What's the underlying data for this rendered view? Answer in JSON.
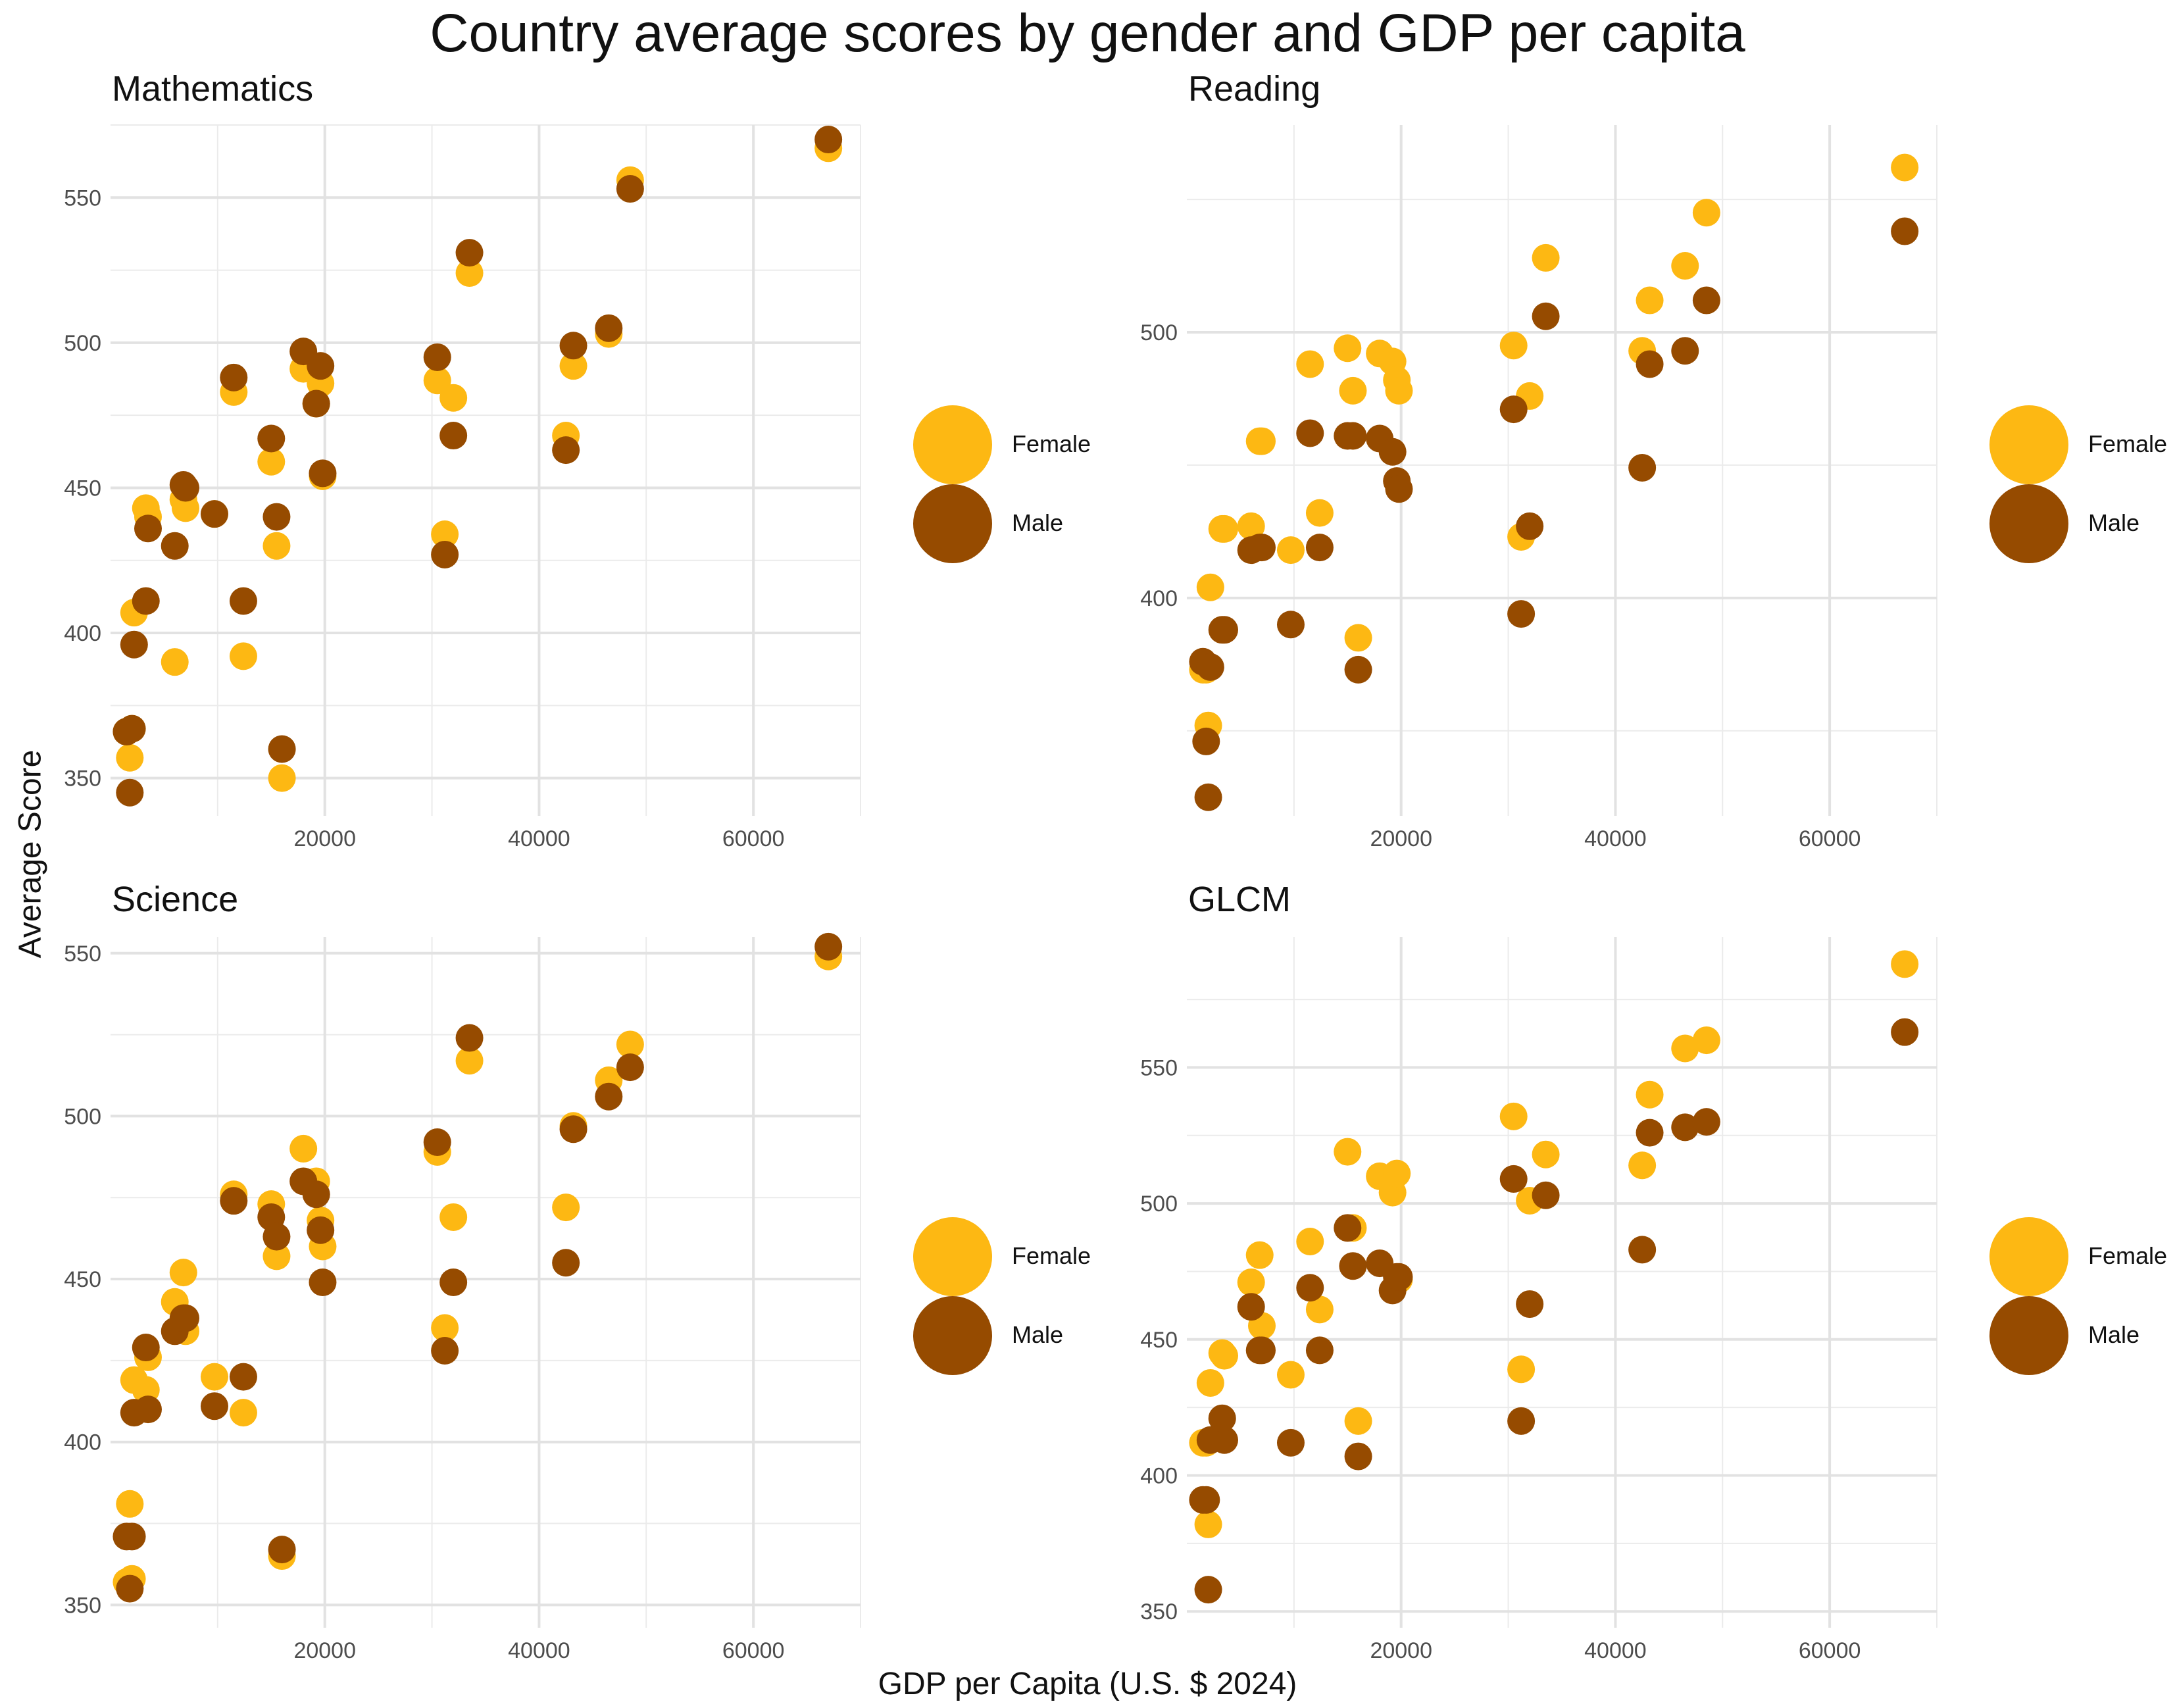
{
  "title": "Country average scores by gender and GDP per capita",
  "xlabel": "GDP per Capita (U.S. $ 2024)",
  "ylabel": "Average Score",
  "colors": {
    "Female": "#FDB813",
    "Male": "#964B00"
  },
  "legend_labels": [
    "Female",
    "Male"
  ],
  "gdp": [
    2000,
    1800,
    1500,
    2200,
    3500,
    3300,
    6000,
    6800,
    7000,
    9700,
    11500,
    12400,
    15000,
    15500,
    16000,
    18000,
    19200,
    19600,
    19800,
    30500,
    31200,
    32000,
    33500,
    42500,
    43200,
    46500,
    48500,
    67000
  ],
  "chart_data": [
    {
      "type": "scatter",
      "title": "Mathematics",
      "xlim": [
        0,
        70000
      ],
      "ylim": [
        337,
        575
      ],
      "xticks": [
        20000,
        40000,
        60000
      ],
      "yticks": [
        350,
        400,
        450,
        500,
        550
      ],
      "series": [
        {
          "name": "Female",
          "y": [
            367,
            357,
            366,
            407,
            440,
            443,
            390,
            446,
            443,
            441,
            483,
            392,
            459,
            430,
            350,
            491,
            479,
            486,
            454,
            487,
            434,
            481,
            524,
            468,
            492,
            503,
            556,
            567
          ]
        },
        {
          "name": "Male",
          "y": [
            367,
            345,
            366,
            396,
            436,
            411,
            430,
            451,
            450,
            441,
            488,
            411,
            467,
            440,
            360,
            497,
            479,
            492,
            455,
            495,
            427,
            468,
            531,
            463,
            499,
            505,
            553,
            570
          ]
        }
      ]
    },
    {
      "type": "scatter",
      "title": "Reading",
      "xlim": [
        0,
        70000
      ],
      "ylim": [
        318,
        578
      ],
      "xticks": [
        20000,
        40000,
        60000
      ],
      "yticks": [
        400,
        500
      ],
      "series": [
        {
          "name": "Female",
          "y": [
            352,
            373,
            373,
            404,
            426,
            426,
            427,
            459,
            459,
            418,
            488,
            432,
            494,
            478,
            385,
            492,
            489,
            482,
            478,
            495,
            423,
            476,
            528,
            493,
            512,
            525,
            545,
            562
          ]
        },
        {
          "name": "Male",
          "y": [
            325,
            346,
            376,
            374,
            388,
            388,
            418,
            419,
            419,
            390,
            462,
            419,
            461,
            461,
            373,
            460,
            455,
            444,
            441,
            471,
            394,
            427,
            506,
            449,
            488,
            493,
            512,
            538
          ]
        }
      ]
    },
    {
      "type": "scatter",
      "title": "Science",
      "xlim": [
        0,
        70000
      ],
      "ylim": [
        343,
        555
      ],
      "xticks": [
        20000,
        40000,
        60000
      ],
      "yticks": [
        350,
        400,
        450,
        500,
        550
      ],
      "series": [
        {
          "name": "Female",
          "y": [
            358,
            381,
            357,
            419,
            426,
            416,
            443,
            452,
            434,
            420,
            476,
            409,
            473,
            457,
            365,
            490,
            480,
            468,
            460,
            489,
            435,
            469,
            517,
            472,
            497,
            511,
            522,
            549
          ]
        },
        {
          "name": "Male",
          "y": [
            371,
            355,
            371,
            409,
            410,
            429,
            434,
            438,
            438,
            411,
            474,
            420,
            469,
            463,
            367,
            480,
            476,
            465,
            449,
            492,
            428,
            449,
            524,
            455,
            496,
            506,
            515,
            552
          ]
        }
      ]
    },
    {
      "type": "scatter",
      "title": "GLCM",
      "xlim": [
        0,
        70000
      ],
      "ylim": [
        344,
        598
      ],
      "xticks": [
        20000,
        40000,
        60000
      ],
      "yticks": [
        350,
        400,
        450,
        500,
        550
      ],
      "series": [
        {
          "name": "Female",
          "y": [
            382,
            412,
            412,
            434,
            444,
            445,
            471,
            481,
            455,
            437,
            486,
            461,
            519,
            491,
            420,
            510,
            504,
            511,
            472,
            532,
            439,
            501,
            518,
            514,
            540,
            557,
            560,
            588
          ]
        },
        {
          "name": "Male",
          "y": [
            358,
            391,
            391,
            413,
            413,
            421,
            462,
            446,
            446,
            412,
            469,
            446,
            491,
            477,
            407,
            478,
            468,
            473,
            473,
            509,
            420,
            463,
            503,
            483,
            526,
            528,
            530,
            563
          ]
        }
      ]
    }
  ]
}
